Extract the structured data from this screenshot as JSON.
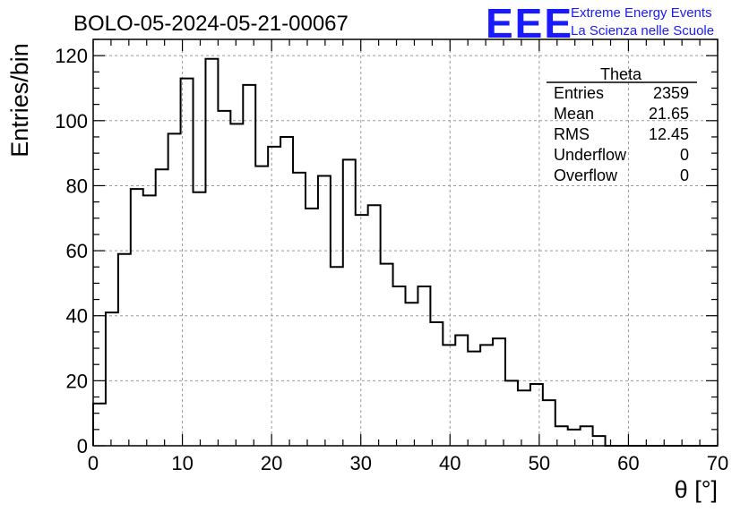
{
  "header": {
    "run_title": "BOLO-05-2024-05-21-00067",
    "logo_text": "EEE",
    "logo_line1": "Extreme Energy Events",
    "logo_line2": "La Scienza nelle Scuole",
    "brand_color": "#1a1aff"
  },
  "stats_box": {
    "title": "Theta",
    "rows": [
      {
        "label": "Entries",
        "value": "2359"
      },
      {
        "label": "Mean",
        "value": "21.65"
      },
      {
        "label": "RMS",
        "value": "12.45"
      },
      {
        "label": "Underflow",
        "value": "0"
      },
      {
        "label": "Overflow",
        "value": "0"
      }
    ]
  },
  "chart_data": {
    "type": "bar",
    "histogram": true,
    "xlabel": "θ [°]",
    "ylabel": "Entries/bin",
    "xlim": [
      0,
      70
    ],
    "ylim": [
      0,
      125
    ],
    "grid": true,
    "bin_width": 1.4,
    "x_ticks": [
      0,
      10,
      20,
      30,
      40,
      50,
      60,
      70
    ],
    "y_ticks": [
      0,
      20,
      40,
      60,
      80,
      100,
      120
    ],
    "values": [
      13,
      41,
      59,
      79,
      77,
      85,
      96,
      113,
      78,
      119,
      103,
      99,
      111,
      86,
      92,
      95,
      84,
      73,
      83,
      55,
      88,
      71,
      74,
      56,
      49,
      44,
      49,
      38,
      31,
      34,
      29,
      31,
      33,
      20,
      17,
      19,
      14,
      6,
      5,
      6,
      3,
      0,
      0,
      0,
      0,
      0,
      0,
      0,
      0,
      0
    ]
  }
}
